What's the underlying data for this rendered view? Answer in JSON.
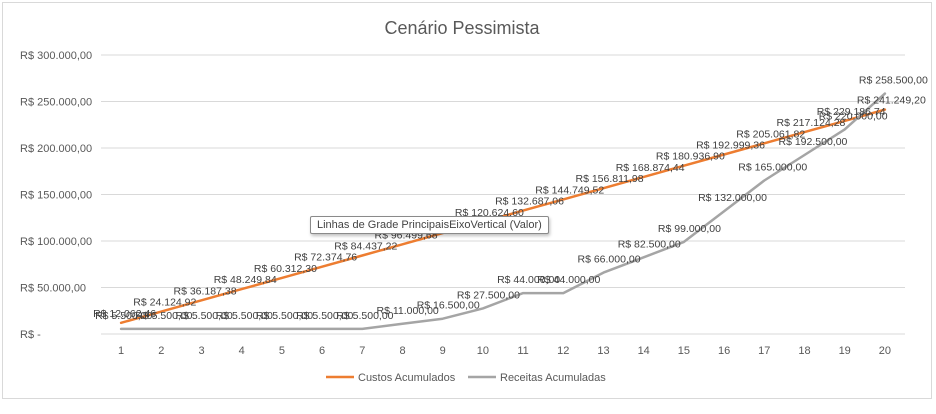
{
  "chart_data": {
    "type": "line",
    "title": "Cenário Pessimista",
    "xlabel": "",
    "ylabel": "",
    "categories": [
      "1",
      "2",
      "3",
      "4",
      "5",
      "6",
      "7",
      "8",
      "9",
      "10",
      "11",
      "12",
      "13",
      "14",
      "15",
      "16",
      "17",
      "18",
      "19",
      "20"
    ],
    "ylim": [
      0,
      300000
    ],
    "yticks": [
      0,
      50000,
      100000,
      150000,
      200000,
      250000,
      300000
    ],
    "ytick_labels": [
      "R$ -",
      "R$ 50.000,00",
      "R$ 100.000,00",
      "R$ 150.000,00",
      "R$ 200.000,00",
      "R$ 250.000,00",
      "R$ 300.000,00"
    ],
    "grid": true,
    "legend_position": "bottom",
    "series": [
      {
        "name": "Custos Acumulados",
        "color": "#ED7D31",
        "values": [
          12062.46,
          24124.92,
          36187.38,
          48249.84,
          60312.3,
          72374.76,
          84437.22,
          96499.68,
          108562.14,
          120624.6,
          132687.06,
          144749.52,
          156811.98,
          168874.44,
          180936.9,
          192999.36,
          205061.82,
          217124.28,
          229186.74,
          241249.2
        ],
        "labels": [
          "R$ 12.062,46",
          "R$ 24.124,92",
          "R$ 36.187,38",
          "R$ 48.249,84",
          "R$ 60.312,30",
          "R$ 72.374,76",
          "R$ 84.437,22",
          "R$ 96.499,68",
          "R$ 108.562,14",
          "R$ 120.624,60",
          "R$ 132.687,06",
          "R$ 144.749,52",
          "R$ 156.811,98",
          "R$ 168.874,44",
          "R$ 180.936,90",
          "R$ 192.999,36",
          "R$ 205.061,82",
          "R$ 217.124,28",
          "R$ 229.186,74",
          "R$ 241.249,20"
        ]
      },
      {
        "name": "Receitas Acumuladas",
        "color": "#A5A5A5",
        "values": [
          5500,
          5500,
          5500,
          5500,
          5500,
          5500,
          5500,
          11000,
          16500,
          27500,
          44000,
          44000,
          66000,
          82500,
          99000,
          132000,
          165000,
          192500,
          220000,
          258500
        ],
        "labels": [
          "R$ 5.500,00",
          "R$ 5.500,00",
          "R$ 5.500,00",
          "R$ 5.500,00",
          "R$ 5.500,00",
          "R$ 5.500,00",
          "R$ 5.500,00",
          "R$ 11.000,00",
          "R$ 16.500,00",
          "R$ 27.500,00",
          "R$ 44.000,00",
          "R$ 44.000,00",
          "R$ 66.000,00",
          "R$ 82.500,00",
          "R$ 99.000,00",
          "R$ 132.000,00",
          "R$ 165.000,00",
          "R$ 192.500,00",
          "R$ 220.000,00",
          "R$ 258.500,00"
        ]
      }
    ]
  },
  "tooltip": {
    "text": "Linhas de Grade PrincipaisEixoVertical (Valor)"
  }
}
